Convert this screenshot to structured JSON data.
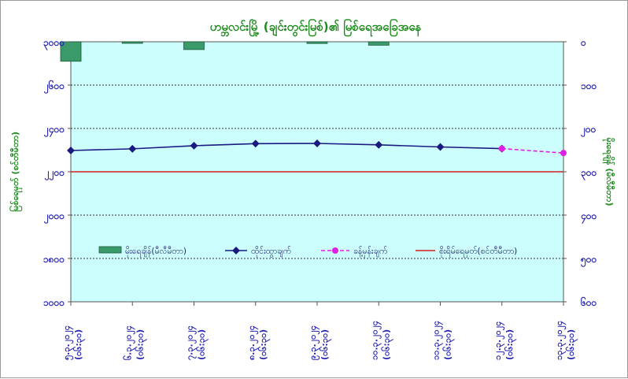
{
  "chart_data": {
    "type": "line",
    "title": "ဟမ္ဘလင်းမြို့ (ချင်းတွင်းမြစ်)၏ မြစ်ရေအခြေအနေ",
    "ylabel_left": "မြစ်ရေမှတ် (စင်တီမီတာ)",
    "ylabel_right": "မိုးရေချိန် (မီလီမီတာ)",
    "categories": [
      "၅.၃.၂၀၂၄\n(၀၆:၃၀)",
      "၆.၃.၂၀၂၄\n(၀၆:၃၀)",
      "၇.၃.၂၀၂၄\n(၀၆:၃၀)",
      "၈.၃.၂၀၂၄\n(၀၆:၃၀)",
      "၉.၃.၂၀၂၄\n(၀၆:၃၀)",
      "၁၀.၃.၂၀၂၄\n(၀၆:၃၀)",
      "၁၁.၃.၂၀၂၄\n(၀၆:၃၀)",
      "၁၂.၃.၂၀၂၄\n(၀၆:၃၀)",
      "၁၃.၃.၂၀၂၄\n(၀၆:၃၀)"
    ],
    "ylim_left": [
      1000,
      3000
    ],
    "yticks_left": [
      "၃၀၀၀",
      "၂၆၀၀",
      "၂၄၀၀",
      "၂၂၀၀",
      "၂၀၀၀",
      "၁၈၀၀",
      "၁၆၀၀",
      "၁၀၀၀"
    ],
    "ylim_right": [
      0,
      600
    ],
    "yticks_right": [
      "၀",
      "၁၀၀",
      "၂၀၀",
      "၃၀၀",
      "၄၀၀",
      "၅၀၀",
      "၆၀၀"
    ],
    "series": [
      {
        "name": "မိုးရေချိန်(မီလီမီတာ)",
        "kind": "bar",
        "axis": "right",
        "color": "#3a9a6a",
        "values": [
          45,
          2,
          18,
          0,
          4,
          8,
          0,
          0,
          0
        ]
      },
      {
        "name": "ထိုင်းထွာချက်",
        "kind": "line",
        "axis": "left",
        "color": "#1a1a80",
        "values": [
          2100,
          2108,
          2123,
          2133,
          2134,
          2127,
          2117,
          2109,
          null
        ]
      },
      {
        "name": "ခန့်မှန်းချက်",
        "kind": "forecast",
        "axis": "left",
        "color": "#e020e0",
        "values": [
          null,
          null,
          null,
          null,
          null,
          null,
          null,
          2109,
          2088
        ]
      },
      {
        "name": "စိုးရိမ်ရေမှတ်(စင်တီမီတာ)",
        "kind": "hline",
        "axis": "left",
        "color": "#d02020",
        "value": 2000
      }
    ],
    "grid": true,
    "legend_position": "bottom-inside"
  },
  "colors": {
    "plot_bg": "#ccfefe",
    "axis": "#555555",
    "tick_text": "#2323b0",
    "title": "#1a8a1a"
  }
}
